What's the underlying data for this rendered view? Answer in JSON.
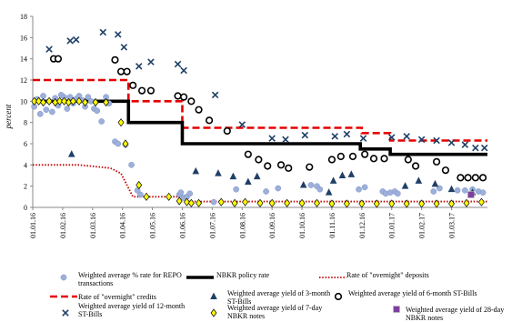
{
  "chart_data": {
    "type": "line",
    "title": "",
    "ylabel": "percent",
    "xlabel": "",
    "ylim": [
      0,
      18
    ],
    "yticks": [
      "0",
      "2",
      "4",
      "6",
      "8",
      "10",
      "12",
      "14",
      "16",
      "18"
    ],
    "xticks": [
      "01.01.16",
      "01.02.16",
      "01.03.16",
      "01.04.16",
      "01.05.16",
      "01.06.16",
      "01.07.16",
      "01.08.16",
      "01.09.16",
      "01.10.16",
      "01.11.16",
      "01.12.16",
      "01.01.17",
      "01.02.17",
      "01.03.17"
    ],
    "x_range_months": [
      0,
      15.2
    ],
    "grid": false,
    "legend_position": "bottom",
    "series": [
      {
        "name": "Weighted average % rate for REPO transactions",
        "style": "circle-filled",
        "color": "#9db0dc",
        "points": [
          [
            0.05,
            9.5
          ],
          [
            0.15,
            10.2
          ],
          [
            0.25,
            8.8
          ],
          [
            0.35,
            10.5
          ],
          [
            0.45,
            9.2
          ],
          [
            0.55,
            10.0
          ],
          [
            0.65,
            9.0
          ],
          [
            0.75,
            10.3
          ],
          [
            0.85,
            9.6
          ],
          [
            0.95,
            10.6
          ],
          [
            1.05,
            10.4
          ],
          [
            1.15,
            9.3
          ],
          [
            1.25,
            10.4
          ],
          [
            1.35,
            9.8
          ],
          [
            1.45,
            10.2
          ],
          [
            1.55,
            10.5
          ],
          [
            1.65,
            10.1
          ],
          [
            1.75,
            9.5
          ],
          [
            1.85,
            10.4
          ],
          [
            1.95,
            10.0
          ],
          [
            2.05,
            9.3
          ],
          [
            2.15,
            9.1
          ],
          [
            2.3,
            8.1
          ],
          [
            2.45,
            10.4
          ],
          [
            2.55,
            9.8
          ],
          [
            2.75,
            6.2
          ],
          [
            2.85,
            6.0
          ],
          [
            3.1,
            5.9
          ],
          [
            3.3,
            4.0
          ],
          [
            3.5,
            1.6
          ],
          [
            3.6,
            1.2
          ],
          [
            4.9,
            1.2
          ],
          [
            4.95,
            1.4
          ],
          [
            5.05,
            0.9
          ],
          [
            5.15,
            1.0
          ],
          [
            5.25,
            1.3
          ],
          [
            6.05,
            0.5
          ],
          [
            6.8,
            1.7
          ],
          [
            7.8,
            1.5
          ],
          [
            8.2,
            1.8
          ],
          [
            9.3,
            2.1
          ],
          [
            9.5,
            2.0
          ],
          [
            9.6,
            1.7
          ],
          [
            10.9,
            1.7
          ],
          [
            11.1,
            1.9
          ],
          [
            11.7,
            1.5
          ],
          [
            11.8,
            1.3
          ],
          [
            11.95,
            1.4
          ],
          [
            12.1,
            1.5
          ],
          [
            12.2,
            1.3
          ],
          [
            13.4,
            1.5
          ],
          [
            13.6,
            1.8
          ],
          [
            14.2,
            1.6
          ],
          [
            14.45,
            1.6
          ],
          [
            14.7,
            1.7
          ],
          [
            14.9,
            1.5
          ],
          [
            15.05,
            1.4
          ]
        ]
      },
      {
        "name": "NBKR policy rate",
        "style": "line-thick",
        "color": "#000000",
        "points": [
          [
            0,
            10
          ],
          [
            3.2,
            10
          ],
          [
            3.2,
            8
          ],
          [
            5.0,
            8
          ],
          [
            5.0,
            6
          ],
          [
            10.95,
            6
          ],
          [
            10.95,
            5.5
          ],
          [
            11.95,
            5.5
          ],
          [
            11.95,
            5
          ],
          [
            15.2,
            5
          ]
        ]
      },
      {
        "name": "Rate of \"overnight\" deposits",
        "style": "line-dotted",
        "color": "#c00000",
        "points": [
          [
            0,
            4
          ],
          [
            1.55,
            4
          ],
          [
            2.6,
            3.7
          ],
          [
            2.95,
            3.2
          ],
          [
            3.35,
            1.0
          ],
          [
            5.0,
            1.0
          ],
          [
            5.1,
            0.55
          ],
          [
            15.2,
            0.55
          ]
        ]
      },
      {
        "name": "Rate of \"overnight\" credits",
        "style": "line-dashed",
        "color": "#e60000",
        "points": [
          [
            0,
            12
          ],
          [
            3.2,
            12
          ],
          [
            3.2,
            10
          ],
          [
            5.0,
            10
          ],
          [
            5.0,
            7.5
          ],
          [
            11.0,
            7.5
          ],
          [
            11.0,
            7.0
          ],
          [
            11.95,
            7.0
          ],
          [
            11.95,
            6.3
          ],
          [
            15.2,
            6.3
          ]
        ]
      },
      {
        "name": "Weighted average yield of 3-month ST-Bills",
        "style": "triangle",
        "color": "#1f3f66",
        "points": [
          [
            1.3,
            5.0
          ],
          [
            5.45,
            3.4
          ],
          [
            6.2,
            3.2
          ],
          [
            6.7,
            2.9
          ],
          [
            7.2,
            2.4
          ],
          [
            7.5,
            2.9
          ],
          [
            9.05,
            2.1
          ],
          [
            9.9,
            1.4
          ],
          [
            10.05,
            2.5
          ],
          [
            10.35,
            3.0
          ],
          [
            10.65,
            3.1
          ],
          [
            12.45,
            2.0
          ],
          [
            12.9,
            2.5
          ],
          [
            13.45,
            2.2
          ],
          [
            14.0,
            1.7
          ],
          [
            14.7,
            1.4
          ]
        ]
      },
      {
        "name": "Weighted average yield of 6-month ST-Bills",
        "style": "circle-open",
        "color": "#000000",
        "points": [
          [
            0.7,
            14.0
          ],
          [
            0.85,
            14.0
          ],
          [
            2.75,
            13.9
          ],
          [
            2.95,
            12.8
          ],
          [
            3.15,
            12.8
          ],
          [
            3.35,
            11.5
          ],
          [
            3.65,
            11.0
          ],
          [
            3.95,
            11.0
          ],
          [
            4.85,
            10.5
          ],
          [
            5.05,
            10.4
          ],
          [
            5.3,
            10.0
          ],
          [
            5.55,
            9.2
          ],
          [
            5.9,
            8.2
          ],
          [
            6.5,
            7.2
          ],
          [
            7.2,
            5.0
          ],
          [
            7.55,
            4.5
          ],
          [
            7.85,
            3.9
          ],
          [
            8.3,
            4.0
          ],
          [
            8.55,
            3.7
          ],
          [
            9.25,
            3.8
          ],
          [
            10.0,
            4.5
          ],
          [
            10.3,
            4.8
          ],
          [
            10.7,
            4.8
          ],
          [
            11.1,
            5.0
          ],
          [
            11.4,
            4.6
          ],
          [
            11.75,
            4.6
          ],
          [
            12.55,
            4.5
          ],
          [
            12.8,
            3.9
          ],
          [
            13.5,
            4.3
          ],
          [
            13.8,
            3.5
          ],
          [
            14.3,
            2.8
          ],
          [
            14.55,
            2.8
          ],
          [
            14.8,
            2.8
          ],
          [
            15.05,
            2.8
          ]
        ]
      },
      {
        "name": "Weighted average yield of 12-month ST-Bills",
        "style": "cross",
        "color": "#1f3f66",
        "points": [
          [
            0.55,
            14.9
          ],
          [
            1.25,
            15.7
          ],
          [
            1.45,
            15.8
          ],
          [
            2.35,
            16.5
          ],
          [
            2.85,
            16.3
          ],
          [
            3.05,
            15.1
          ],
          [
            3.55,
            13.3
          ],
          [
            3.95,
            13.7
          ],
          [
            4.85,
            13.5
          ],
          [
            5.05,
            12.9
          ],
          [
            6.1,
            10.6
          ],
          [
            7.0,
            7.8
          ],
          [
            8.0,
            6.5
          ],
          [
            8.45,
            6.4
          ],
          [
            9.1,
            6.8
          ],
          [
            10.1,
            6.7
          ],
          [
            10.5,
            6.9
          ],
          [
            11.05,
            6.5
          ],
          [
            12.0,
            6.6
          ],
          [
            12.5,
            6.7
          ],
          [
            13.0,
            6.4
          ],
          [
            13.5,
            6.3
          ],
          [
            14.0,
            6.1
          ],
          [
            14.45,
            5.9
          ],
          [
            14.8,
            5.6
          ],
          [
            15.1,
            5.6
          ]
        ]
      },
      {
        "name": "Weighted average yield of 7-day NBKR notes",
        "style": "diamond",
        "color": "#ffff00",
        "points": [
          [
            0.05,
            10.0
          ],
          [
            0.2,
            10.0
          ],
          [
            0.35,
            9.9
          ],
          [
            0.55,
            10.0
          ],
          [
            0.75,
            9.9
          ],
          [
            0.9,
            10.0
          ],
          [
            1.05,
            10.0
          ],
          [
            1.2,
            9.9
          ],
          [
            1.35,
            10.0
          ],
          [
            1.55,
            10.0
          ],
          [
            1.75,
            9.9
          ],
          [
            2.1,
            9.9
          ],
          [
            2.45,
            9.9
          ],
          [
            2.95,
            8.0
          ],
          [
            3.1,
            6.0
          ],
          [
            3.55,
            2.1
          ],
          [
            3.8,
            1.0
          ],
          [
            4.55,
            1.0
          ],
          [
            4.9,
            0.6
          ],
          [
            5.15,
            0.5
          ],
          [
            5.3,
            0.4
          ],
          [
            5.55,
            0.4
          ],
          [
            6.3,
            0.5
          ],
          [
            6.75,
            0.4
          ],
          [
            7.1,
            0.5
          ],
          [
            7.6,
            0.4
          ],
          [
            8.0,
            0.4
          ],
          [
            8.5,
            0.4
          ],
          [
            9.0,
            0.4
          ],
          [
            9.5,
            0.4
          ],
          [
            10.0,
            0.35
          ],
          [
            10.5,
            0.35
          ],
          [
            11.0,
            0.35
          ],
          [
            11.5,
            0.35
          ],
          [
            12.0,
            0.35
          ],
          [
            12.5,
            0.35
          ],
          [
            13.0,
            0.35
          ],
          [
            13.5,
            0.35
          ],
          [
            14.0,
            0.35
          ],
          [
            14.5,
            0.4
          ],
          [
            15.0,
            0.5
          ]
        ]
      },
      {
        "name": "Weighted average yield of 28-day NBKR notes",
        "style": "square",
        "color": "#7f3f9f",
        "points": [
          [
            14.65,
            1.2
          ]
        ]
      }
    ]
  }
}
